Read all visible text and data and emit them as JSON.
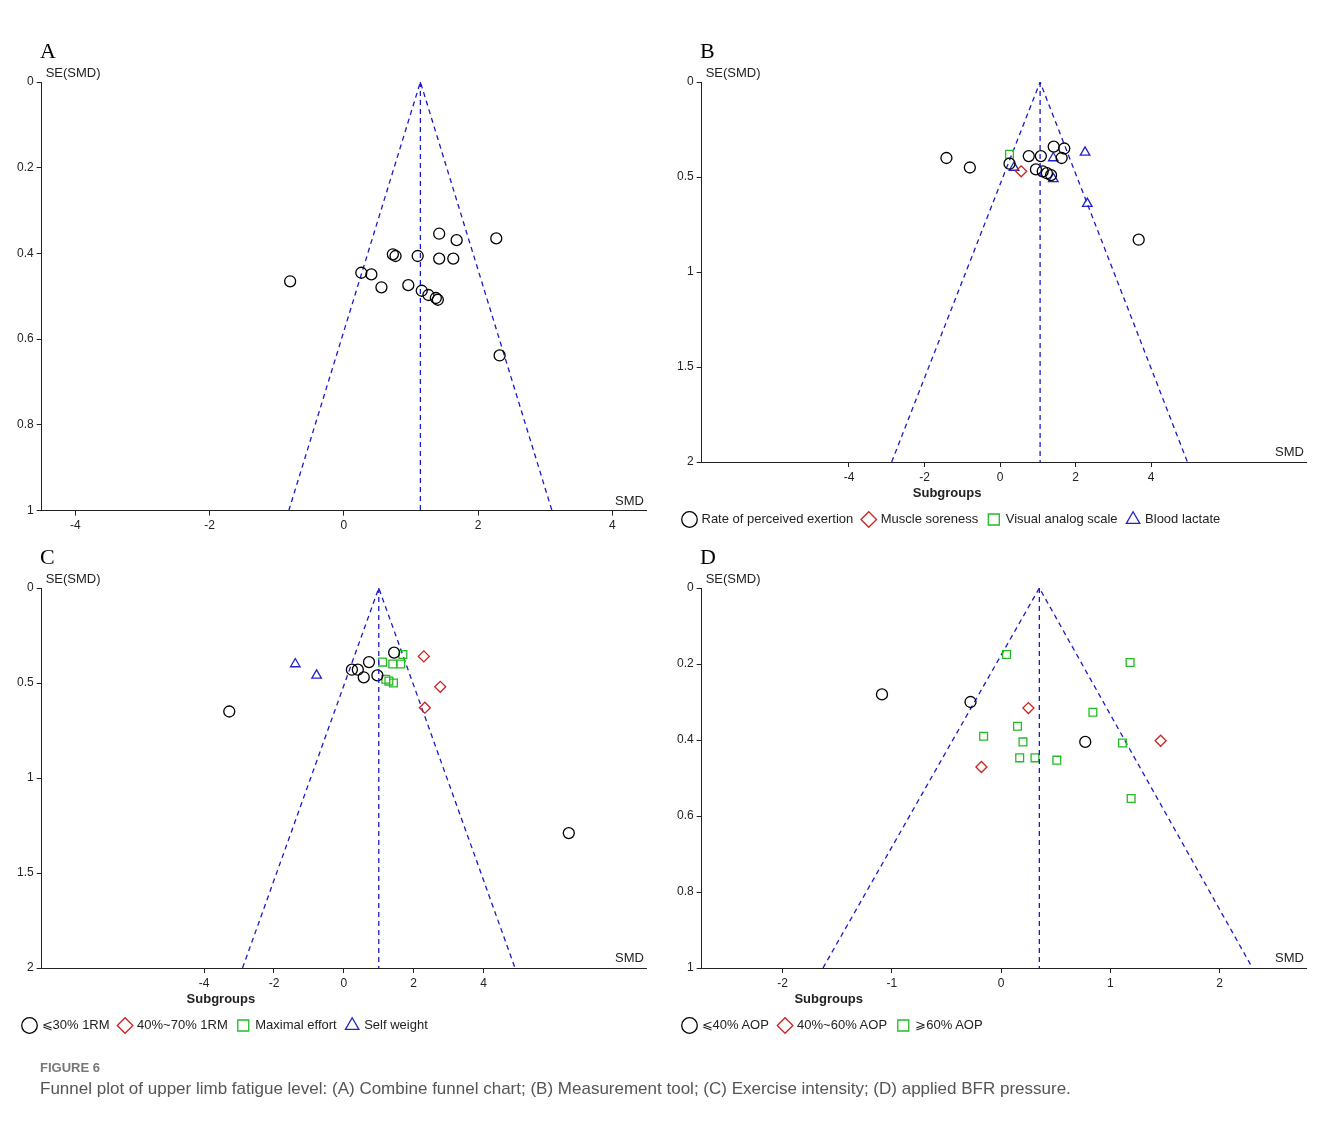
{
  "chart_data": [
    {
      "type": "scatter",
      "title": "A",
      "xlabel": "SMD",
      "ylabel": "SE(SMD)",
      "xlim": [
        -4.5,
        4.5
      ],
      "xticks": [
        -4,
        -2,
        0,
        2,
        4
      ],
      "ylim": [
        1,
        0
      ],
      "yticks": [
        0,
        0.2,
        0.4,
        0.6,
        0.8,
        1
      ],
      "grid": false,
      "legend": false,
      "ref_lines": [
        {
          "axis": "x",
          "value": 1.14,
          "color": "#1a1acc",
          "line_style": "dashed"
        }
      ],
      "series": [
        {
          "type": "scatter",
          "color": "#000000",
          "marker": "circle",
          "x": [
            -0.8,
            0.26,
            0.41,
            0.56,
            0.73,
            0.77,
            0.96,
            1.1,
            1.16,
            1.26,
            1.37,
            1.4,
            1.42,
            1.42,
            1.63,
            1.68,
            2.27,
            2.32
          ],
          "values": [
            0.465,
            0.445,
            0.449,
            0.479,
            0.402,
            0.406,
            0.474,
            0.406,
            0.487,
            0.497,
            0.504,
            0.508,
            0.354,
            0.412,
            0.412,
            0.369,
            0.365,
            0.638
          ]
        },
        {
          "type": "line",
          "color": "#1a1acc",
          "marker": "none",
          "line_style": "dashed",
          "x": [
            -0.82,
            1.14,
            3.1
          ],
          "values": [
            1,
            0,
            1
          ]
        }
      ]
    },
    {
      "type": "scatter",
      "title": "B",
      "xlabel": "SMD",
      "ylabel": "SE(SMD)",
      "xlim": [
        -7.9,
        8.1
      ],
      "xticks": [
        -4,
        -2,
        0,
        2,
        4
      ],
      "ylim": [
        2,
        0
      ],
      "yticks": [
        0,
        0.5,
        1,
        1.5,
        2
      ],
      "grid": false,
      "legend": "bottom",
      "legend_title": "Subgroups",
      "ref_lines": [
        {
          "axis": "x",
          "value": 1.06,
          "color": "#1a1acc",
          "line_style": "dashed"
        }
      ],
      "series": [
        {
          "type": "scatter",
          "name": "Rate of perceived exertion",
          "color": "#000000",
          "marker": "circle",
          "x": [
            -1.42,
            -0.8,
            0.25,
            0.76,
            1.08,
            0.95,
            1.13,
            1.24,
            1.35,
            1.42,
            1.7,
            1.63,
            3.67
          ],
          "values": [
            0.4,
            0.45,
            0.43,
            0.39,
            0.39,
            0.46,
            0.47,
            0.48,
            0.49,
            0.34,
            0.35,
            0.4,
            0.83
          ]
        },
        {
          "type": "scatter",
          "name": "Muscle soreness",
          "color": "#cc2222",
          "marker": "diamond",
          "x": [
            0.56
          ],
          "values": [
            0.47
          ]
        },
        {
          "type": "scatter",
          "name": "Visual analog scale",
          "color": "#22bb22",
          "marker": "square",
          "x": [
            0.25
          ],
          "values": [
            0.38
          ]
        },
        {
          "type": "scatter",
          "name": "Blood lactate",
          "color": "#2222cc",
          "marker": "triangle",
          "x": [
            0.37,
            1.41,
            1.41,
            2.25,
            2.31
          ],
          "values": [
            0.45,
            0.4,
            0.51,
            0.37,
            0.64
          ]
        },
        {
          "type": "line",
          "color": "#1a1acc",
          "marker": "none",
          "line_style": "dashed",
          "x": [
            -2.87,
            1.06,
            4.96
          ],
          "values": [
            2,
            0,
            2
          ]
        }
      ]
    },
    {
      "type": "scatter",
      "title": "C",
      "xlabel": "SMD",
      "ylabel": "SE(SMD)",
      "xlim": [
        -8.65,
        8.65
      ],
      "xticks": [
        -4,
        -2,
        0,
        2,
        4
      ],
      "ylim": [
        2,
        0
      ],
      "yticks": [
        0,
        0.5,
        1,
        1.5,
        2
      ],
      "grid": false,
      "legend": "bottom",
      "legend_title": "Subgroups",
      "ref_lines": [
        {
          "axis": "x",
          "value": 1.0,
          "color": "#1a1acc",
          "line_style": "dashed"
        }
      ],
      "series": [
        {
          "type": "scatter",
          "name": "⩽30% 1RM",
          "color": "#000000",
          "marker": "circle",
          "x": [
            -3.28,
            0.23,
            0.4,
            0.57,
            0.72,
            0.96,
            1.44,
            6.44
          ],
          "values": [
            0.65,
            0.43,
            0.43,
            0.47,
            0.39,
            0.46,
            0.34,
            1.29
          ]
        },
        {
          "type": "scatter",
          "name": "40%~70% 1RM",
          "color": "#cc2222",
          "marker": "diamond",
          "x": [
            2.29,
            2.76,
            2.32
          ],
          "values": [
            0.36,
            0.52,
            0.63
          ]
        },
        {
          "type": "scatter",
          "name": "Maximal effort",
          "color": "#22bb22",
          "marker": "square",
          "x": [
            1.11,
            1.4,
            1.63,
            1.69,
            1.2,
            1.29,
            1.42
          ],
          "values": [
            0.39,
            0.4,
            0.4,
            0.35,
            0.48,
            0.49,
            0.5
          ]
        },
        {
          "type": "scatter",
          "name": "Self weight",
          "color": "#2222cc",
          "marker": "triangle",
          "x": [
            -1.39,
            -0.78
          ],
          "values": [
            0.4,
            0.46
          ]
        },
        {
          "type": "line",
          "color": "#1a1acc",
          "marker": "none",
          "line_style": "dashed",
          "x": [
            -2.9,
            1.0,
            4.9
          ],
          "values": [
            2,
            0,
            2
          ]
        }
      ]
    },
    {
      "type": "scatter",
      "title": "D",
      "xlabel": "SMD",
      "ylabel": "SE(SMD)",
      "xlim": [
        -2.74,
        2.79
      ],
      "xticks": [
        -2,
        -1,
        0,
        1,
        2
      ],
      "ylim": [
        1,
        0
      ],
      "yticks": [
        0,
        0.2,
        0.4,
        0.6,
        0.8,
        1
      ],
      "grid": false,
      "legend": "bottom",
      "legend_title": "Subgroups",
      "ref_lines": [
        {
          "axis": "x",
          "value": 0.35,
          "color": "#1a1acc",
          "line_style": "dashed"
        }
      ],
      "annotations": [
        "FIGURE 6",
        "Funnel plot of upper limb fatigue level: (A) Combine funnel chart; (B) Measurement tool; (C) Exercise intensity; (D) applied BFR pressure."
      ],
      "series": [
        {
          "type": "scatter",
          "name": "⩽40% AOP",
          "color": "#000000",
          "marker": "circle",
          "x": [
            -1.09,
            -0.28,
            0.77
          ],
          "values": [
            0.28,
            0.3,
            0.405
          ]
        },
        {
          "type": "scatter",
          "name": "40%~60% AOP",
          "color": "#cc2222",
          "marker": "diamond",
          "x": [
            0.25,
            -0.18,
            1.46
          ],
          "values": [
            0.316,
            0.471,
            0.402
          ]
        },
        {
          "type": "scatter",
          "name": "⩾60% AOP",
          "color": "#22bb22",
          "marker": "square",
          "x": [
            0.05,
            1.18,
            0.84,
            0.15,
            -0.16,
            0.2,
            0.17,
            0.31,
            0.51,
            1.11,
            1.19
          ],
          "values": [
            0.175,
            0.196,
            0.327,
            0.364,
            0.39,
            0.405,
            0.447,
            0.447,
            0.453,
            0.408,
            0.554
          ]
        },
        {
          "type": "line",
          "color": "#1a1acc",
          "marker": "none",
          "line_style": "dashed",
          "x": [
            -1.63,
            0.35,
            2.3
          ],
          "values": [
            1,
            0,
            1
          ]
        }
      ]
    }
  ]
}
